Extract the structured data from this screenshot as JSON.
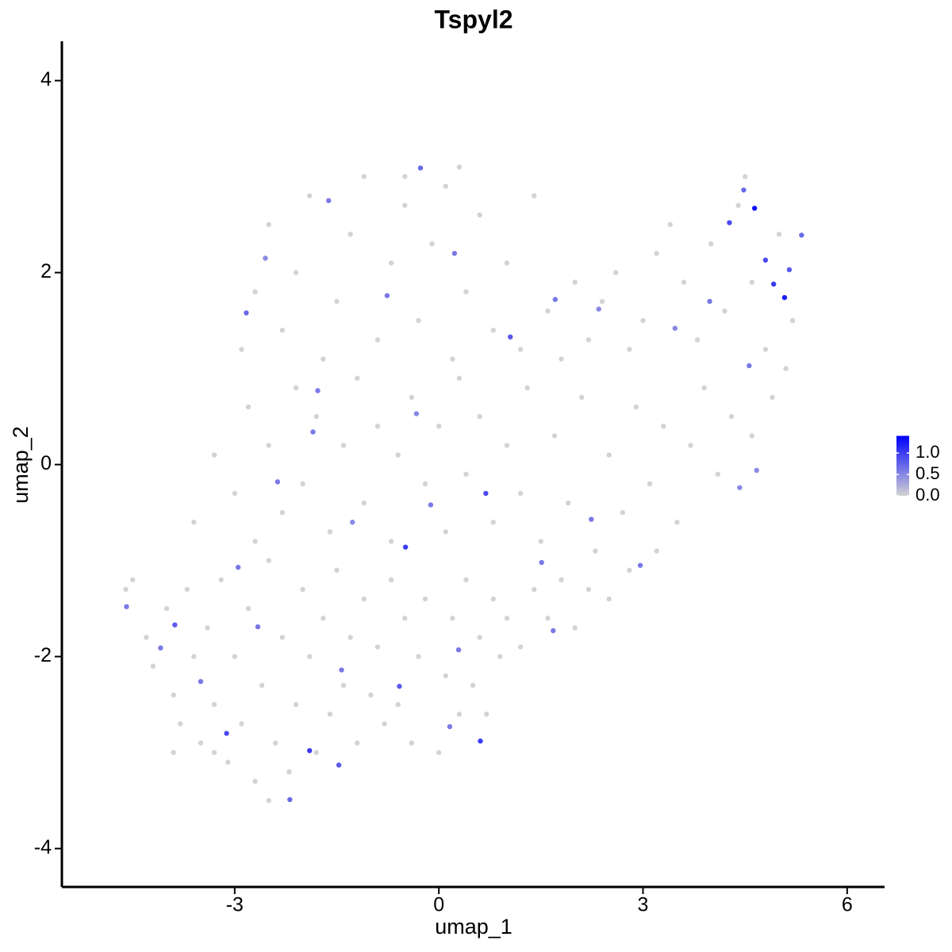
{
  "chart_data": {
    "type": "scatter",
    "title": "Tspyl2",
    "x_label": "umap_1",
    "y_label": "umap_2",
    "xlim": [
      -5.54,
      6.55
    ],
    "ylim": [
      -4.4,
      4.41
    ],
    "xticks": [
      -3,
      0,
      3,
      6
    ],
    "yticks": [
      -4,
      -2,
      0,
      2,
      4
    ],
    "colors": [
      "#d3d3d3",
      "#0000ff"
    ],
    "color_lim": [
      0,
      1.4
    ],
    "color_ticks": [
      {
        "value": 0,
        "label": "0.0"
      },
      {
        "value": 0.5,
        "label": "0.5"
      },
      {
        "value": 1,
        "label": "1.0"
      }
    ],
    "x": [
      -4.6,
      -4.5,
      -4.3,
      -4.2,
      -4.0,
      -3.9,
      -3.8,
      -3.7,
      -3.6,
      -3.5,
      -3.4,
      -3.3,
      -3.2,
      -3.1,
      -3.0,
      -2.9,
      -2.8,
      -2.7,
      -2.6,
      -2.5,
      -2.4,
      -2.3,
      -2.2,
      -2.1,
      -2.0,
      -1.9,
      -1.8,
      -1.7,
      -1.6,
      -1.5,
      -1.4,
      -1.3,
      -1.2,
      -1.1,
      -1.0,
      -0.9,
      -0.8,
      -0.7,
      -0.6,
      -0.5,
      -0.4,
      -0.3,
      -0.2,
      0.0,
      0.1,
      0.2,
      0.3,
      0.4,
      0.5,
      0.6,
      0.7,
      0.8,
      0.9,
      1.0,
      1.2,
      1.4,
      1.6,
      1.8,
      2.0,
      2.2,
      2.5,
      2.8,
      -3.9,
      -2.5,
      -3.3,
      -3.6,
      -3.3,
      -3.0,
      -2.8,
      -2.7,
      -2.5,
      -2.3,
      -2.1,
      -2.0,
      -1.8,
      -1.6,
      -1.4,
      -1.2,
      -1.1,
      -0.9,
      -0.7,
      -0.6,
      -0.4,
      -0.2,
      0.0,
      0.1,
      0.3,
      0.4,
      0.6,
      0.8,
      1.0,
      1.2,
      1.3,
      1.5,
      1.7,
      1.9,
      2.1,
      2.3,
      2.5,
      2.7,
      2.9,
      3.1,
      3.3,
      3.5,
      3.7,
      3.9,
      4.1,
      4.3,
      4.6,
      4.9,
      5.1,
      3.2,
      -2.9,
      -2.7,
      -2.5,
      -2.3,
      -2.1,
      -1.9,
      -1.7,
      -1.5,
      -1.3,
      -1.1,
      -0.9,
      -0.7,
      -0.5,
      -0.3,
      -0.1,
      0.1,
      0.2,
      0.4,
      0.6,
      0.8,
      1.0,
      1.2,
      1.4,
      1.6,
      1.8,
      2.0,
      2.2,
      2.4,
      2.6,
      2.8,
      3.0,
      3.2,
      3.4,
      3.6,
      3.8,
      4.0,
      4.2,
      4.4,
      4.6,
      4.8,
      5.0,
      5.2,
      4.5,
      -0.5,
      0.3,
      4.64,
      5.08,
      4.92,
      4.27,
      4.48,
      4.8,
      5.15,
      5.33,
      -0.49,
      0.69,
      0.61,
      -0.27,
      -3.12,
      -1.9,
      -2.19,
      -3.88,
      -1.47,
      0.23,
      1.05,
      -1.85,
      -2.37,
      -2.83,
      -4.59,
      2.24,
      2.96,
      -0.58,
      1.71,
      -0.76,
      4.67,
      4.56,
      3.47,
      3.98,
      1.51,
      -3.5,
      -2.95,
      -1.78,
      -2.55,
      -1.62,
      -0.12,
      0.29,
      -1.43,
      -1.27,
      -0.33,
      1.68,
      0.16,
      -2.66,
      -4.09,
      2.35,
      4.42
    ],
    "y": [
      -1.3,
      -1.2,
      -1.8,
      -2.1,
      -1.5,
      -2.4,
      -2.7,
      -1.3,
      -2.0,
      -2.9,
      -1.7,
      -2.5,
      -1.2,
      -3.1,
      -2.0,
      -2.7,
      -1.5,
      -3.3,
      -2.3,
      -1.0,
      -2.9,
      -1.8,
      -3.2,
      -2.5,
      -1.3,
      -2.0,
      -3.0,
      -1.6,
      -2.6,
      -1.1,
      -2.3,
      -1.8,
      -2.9,
      -1.4,
      -2.4,
      -1.9,
      -2.7,
      -1.2,
      -2.5,
      -1.6,
      -2.9,
      -2.0,
      -1.4,
      -3.0,
      -2.2,
      -1.6,
      -2.6,
      -1.2,
      -2.3,
      -1.8,
      -2.6,
      -1.4,
      -2.0,
      -1.6,
      -1.9,
      -1.3,
      -1.6,
      -1.2,
      -1.7,
      -1.3,
      -1.4,
      -1.1,
      -3.0,
      -3.5,
      -3.0,
      -0.6,
      0.1,
      -0.3,
      0.6,
      -0.8,
      0.2,
      -0.5,
      0.8,
      -0.2,
      0.5,
      -0.7,
      0.2,
      0.9,
      -0.4,
      0.4,
      -0.8,
      0.1,
      0.7,
      -0.2,
      0.4,
      -0.7,
      0.9,
      -0.1,
      0.5,
      -0.6,
      0.2,
      -0.3,
      0.8,
      -0.8,
      0.3,
      -0.4,
      0.7,
      -0.9,
      0.1,
      -0.5,
      0.6,
      -0.2,
      0.4,
      -0.6,
      0.2,
      0.8,
      -0.1,
      0.5,
      0.3,
      0.7,
      1.0,
      -0.9,
      1.2,
      1.8,
      2.5,
      1.4,
      2.0,
      2.8,
      1.1,
      1.7,
      2.4,
      3.0,
      1.3,
      2.1,
      2.7,
      1.5,
      2.3,
      2.9,
      1.1,
      1.8,
      2.6,
      1.4,
      2.1,
      1.2,
      2.8,
      1.6,
      1.1,
      1.9,
      1.3,
      1.7,
      2.0,
      1.2,
      1.5,
      2.2,
      2.5,
      1.9,
      1.3,
      2.3,
      1.6,
      2.7,
      1.9,
      1.2,
      2.4,
      1.5,
      3.0,
      3.0,
      3.1,
      2.67,
      1.74,
      1.88,
      2.52,
      2.86,
      2.13,
      2.03,
      2.39,
      -0.86,
      -0.3,
      -2.88,
      3.09,
      -2.8,
      -2.98,
      -3.49,
      -1.67,
      -3.13,
      2.2,
      1.33,
      0.34,
      -0.18,
      1.58,
      -1.48,
      -0.57,
      -1.05,
      -2.31,
      1.72,
      1.76,
      -0.06,
      1.03,
      1.42,
      1.7,
      -1.02,
      -2.26,
      -1.07,
      0.77,
      2.15,
      2.75,
      -0.42,
      -1.93,
      -2.14,
      -0.6,
      0.53,
      -1.73,
      -2.73,
      -1.69,
      -1.91,
      1.62,
      -0.24
    ],
    "values": [
      0,
      0,
      0,
      0,
      0,
      0,
      0,
      0,
      0,
      0,
      0,
      0,
      0,
      0,
      0,
      0,
      0,
      0,
      0,
      0,
      0,
      0,
      0,
      0,
      0,
      0,
      0,
      0,
      0,
      0,
      0,
      0,
      0,
      0,
      0,
      0,
      0,
      0,
      0,
      0,
      0,
      0,
      0,
      0,
      0,
      0,
      0,
      0,
      0,
      0,
      0,
      0,
      0,
      0,
      0,
      0,
      0,
      0,
      0,
      0,
      0,
      0,
      0,
      0,
      0,
      0,
      0,
      0,
      0,
      0,
      0,
      0,
      0,
      0,
      0,
      0,
      0,
      0,
      0,
      0,
      0,
      0,
      0,
      0,
      0,
      0,
      0,
      0,
      0,
      0,
      0,
      0,
      0,
      0,
      0,
      0,
      0,
      0,
      0,
      0,
      0,
      0,
      0,
      0,
      0,
      0,
      0,
      0,
      0,
      0,
      0,
      0,
      0,
      0,
      0,
      0,
      0,
      0,
      0,
      0,
      0,
      0,
      0,
      0,
      0,
      0,
      0,
      0,
      0,
      0,
      0,
      0,
      0,
      0,
      0,
      0,
      0,
      0,
      0,
      0,
      0,
      0,
      0,
      0,
      0,
      0,
      0,
      0,
      0,
      0,
      0,
      0,
      0,
      0,
      0,
      0,
      0,
      1.3,
      1.2,
      1.0,
      0.9,
      0.7,
      0.9,
      0.8,
      0.7,
      1.0,
      0.9,
      1.0,
      0.7,
      0.9,
      1.0,
      0.7,
      0.8,
      0.8,
      0.6,
      0.8,
      0.6,
      0.6,
      0.7,
      0.6,
      0.6,
      0.6,
      0.8,
      0.6,
      0.6,
      0.5,
      0.6,
      0.5,
      0.6,
      0.6,
      0.6,
      0.6,
      0.6,
      0.5,
      0.6,
      0.6,
      0.6,
      0.6,
      0.5,
      0.5,
      0.6,
      0.6,
      0.6,
      0.6,
      0.5,
      0.5
    ]
  }
}
